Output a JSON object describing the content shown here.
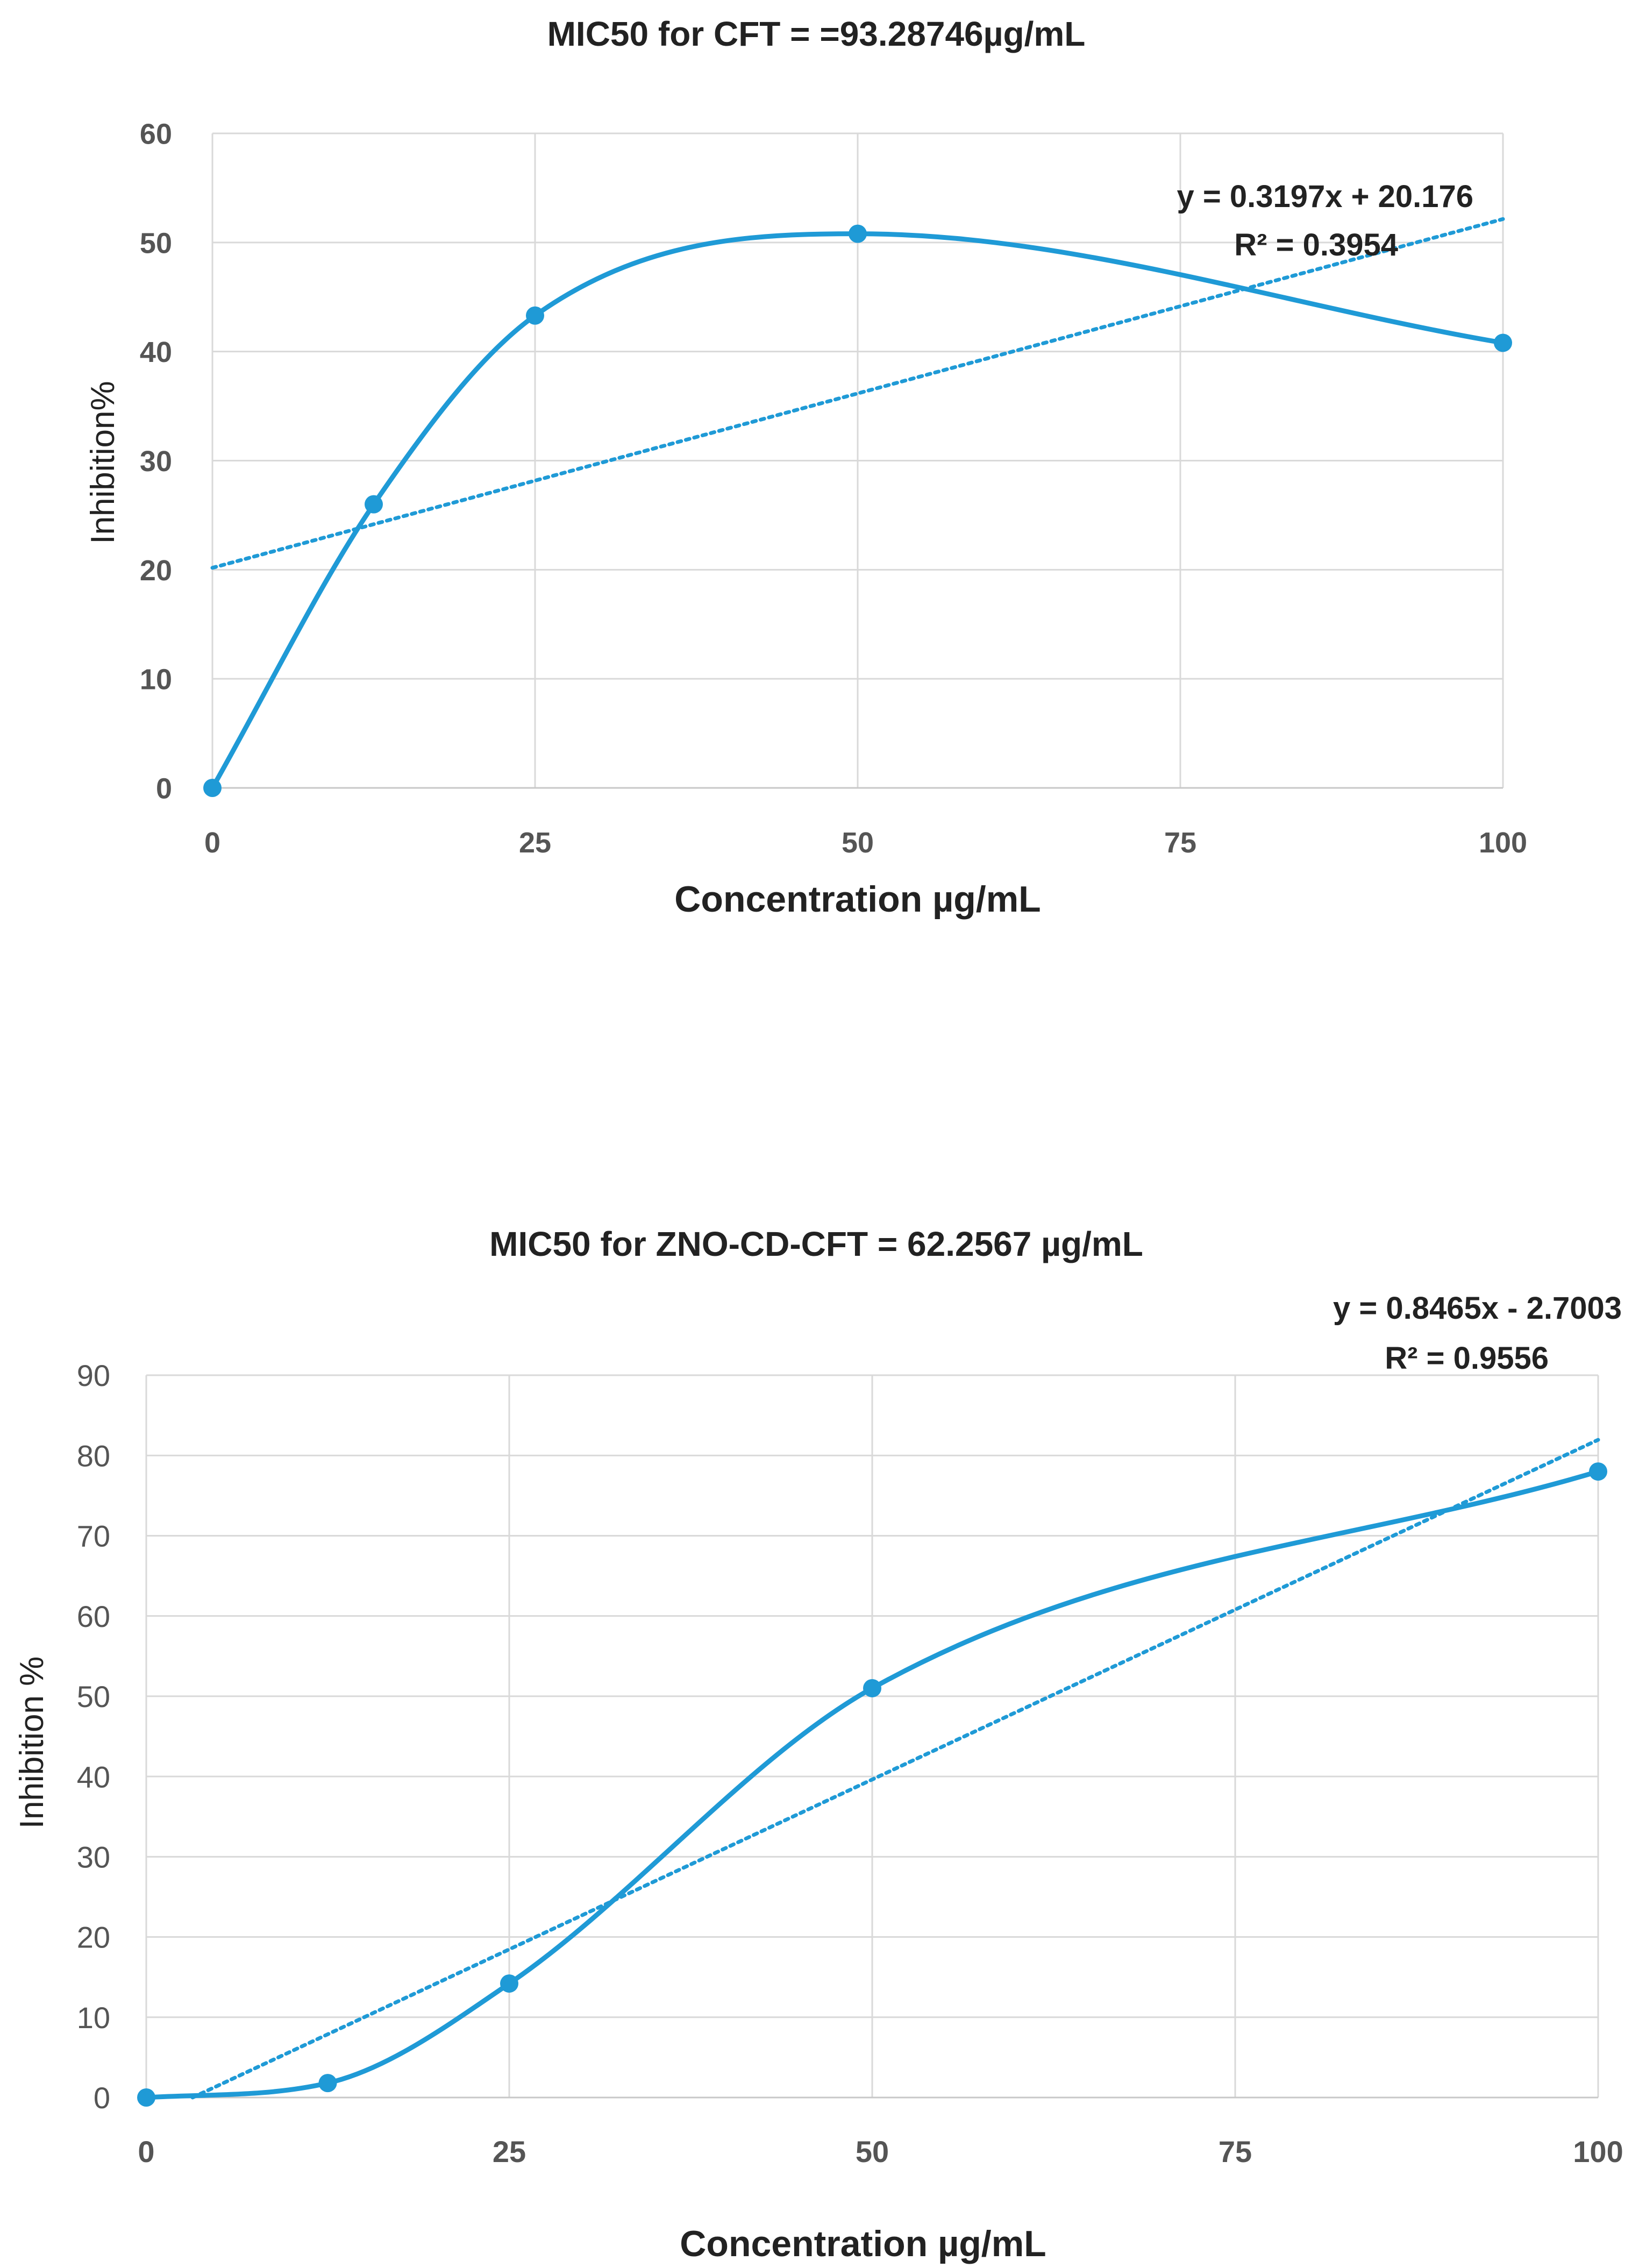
{
  "chart_data": [
    {
      "type": "line",
      "title": "MIC50 for CFT = =93.28746µg/mL",
      "xlabel": "Concentration µg/mL",
      "ylabel": "Inhibition%",
      "xlim": [
        0,
        100
      ],
      "ylim": [
        0,
        60
      ],
      "x_ticks": [
        0,
        25,
        50,
        75,
        100
      ],
      "y_ticks": [
        0,
        10,
        20,
        30,
        40,
        50,
        60
      ],
      "grid": true,
      "color": "#1f9ad6",
      "series": [
        {
          "name": "Inhibition",
          "x": [
            0,
            12.5,
            25,
            50,
            100
          ],
          "y": [
            0,
            26,
            43.3,
            50.8,
            40.8
          ],
          "smooth": true
        }
      ],
      "trendline": {
        "slope": 0.3197,
        "intercept": 20.176,
        "x_range": [
          0,
          100
        ]
      },
      "equation_text": "y = 0.3197x + 20.176",
      "r2_text": "R² = 0.3954"
    },
    {
      "type": "line",
      "title": "MIC50 for ZNO-CD-CFT = 62.2567 µg/mL",
      "xlabel": "Concentration µg/mL",
      "ylabel": "Inhibition %",
      "xlim": [
        0,
        100
      ],
      "ylim": [
        0,
        90
      ],
      "x_ticks": [
        0,
        25,
        50,
        75,
        100
      ],
      "y_ticks": [
        0,
        10,
        20,
        30,
        40,
        50,
        60,
        70,
        80,
        90
      ],
      "grid": true,
      "color": "#1f9ad6",
      "series": [
        {
          "name": "Inhibition",
          "x": [
            0,
            12.5,
            25,
            50,
            100
          ],
          "y": [
            0,
            1.8,
            14.2,
            51,
            78
          ],
          "smooth": true
        }
      ],
      "trendline": {
        "slope": 0.8465,
        "intercept": -2.7003,
        "x_range": [
          3.19,
          100
        ]
      },
      "equation_text": "y = 0.8465x - 2.7003",
      "r2_text": "R² = 0.9556"
    }
  ]
}
